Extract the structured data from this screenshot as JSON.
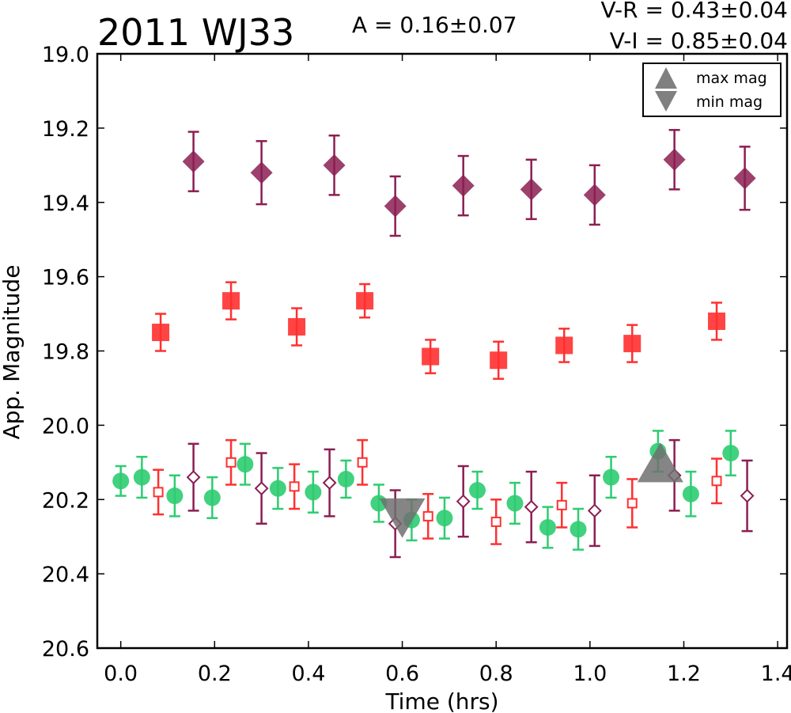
{
  "chart_data": {
    "type": "scatter",
    "title": "2011 WJ33",
    "annotations": {
      "amplitude": "A  = 0.16±0.07",
      "v_r": "V-R = 0.43±0.04",
      "v_i": "V-I  = 0.85±0.04"
    },
    "xlabel": "Time (hrs)",
    "ylabel": "App. Magnitude",
    "xlim": [
      -0.05,
      1.42
    ],
    "ylim": [
      20.6,
      19.0
    ],
    "y_inverted": true,
    "grid": false,
    "x_ticks": [
      "0.0",
      "0.2",
      "0.4",
      "0.6",
      "0.8",
      "1.0",
      "1.2",
      "1.4"
    ],
    "y_ticks": [
      "19.0",
      "19.2",
      "19.4",
      "19.6",
      "19.8",
      "20.0",
      "20.2",
      "20.4",
      "20.6"
    ],
    "legend": {
      "position": "top-right",
      "entries": [
        {
          "label": "max mag",
          "marker": "triangle-up"
        },
        {
          "label": "min mag",
          "marker": "triangle-down"
        }
      ]
    },
    "series": [
      {
        "marker": "diamond-filled",
        "color": "#8b1e52",
        "x": [
          0.155,
          0.3,
          0.455,
          0.585,
          0.73,
          0.875,
          1.01,
          1.18,
          1.33
        ],
        "y": [
          19.29,
          19.32,
          19.3,
          19.41,
          19.355,
          19.365,
          19.38,
          19.285,
          19.335
        ],
        "err": [
          0.08,
          0.085,
          0.08,
          0.08,
          0.08,
          0.08,
          0.08,
          0.08,
          0.085
        ]
      },
      {
        "marker": "square-filled",
        "color": "#ff3030",
        "x": [
          0.085,
          0.235,
          0.375,
          0.52,
          0.66,
          0.805,
          0.945,
          1.09,
          1.27
        ],
        "y": [
          19.75,
          19.665,
          19.735,
          19.665,
          19.815,
          19.825,
          19.785,
          19.78,
          19.72
        ],
        "err": [
          0.05,
          0.05,
          0.05,
          0.045,
          0.045,
          0.05,
          0.045,
          0.05,
          0.05
        ]
      },
      {
        "marker": "circle-filled",
        "color": "#2ecc71",
        "x": [
          0.0,
          0.045,
          0.115,
          0.195,
          0.265,
          0.335,
          0.41,
          0.48,
          0.55,
          0.62,
          0.69,
          0.76,
          0.84,
          0.91,
          0.975,
          1.045,
          1.145,
          1.215,
          1.3
        ],
        "y": [
          20.15,
          20.14,
          20.19,
          20.195,
          20.105,
          20.17,
          20.18,
          20.145,
          20.21,
          20.255,
          20.25,
          20.175,
          20.21,
          20.275,
          20.28,
          20.14,
          20.07,
          20.185,
          20.075
        ],
        "err": [
          0.04,
          0.055,
          0.055,
          0.055,
          0.055,
          0.055,
          0.055,
          0.05,
          0.05,
          0.055,
          0.055,
          0.05,
          0.055,
          0.055,
          0.055,
          0.055,
          0.055,
          0.06,
          0.06
        ]
      },
      {
        "marker": "square-open",
        "color": "#ff3030",
        "x": [
          0.08,
          0.235,
          0.37,
          0.515,
          0.655,
          0.8,
          0.94,
          1.09,
          1.27
        ],
        "y": [
          20.18,
          20.1,
          20.165,
          20.1,
          20.245,
          20.26,
          20.215,
          20.21,
          20.15
        ],
        "err": [
          0.06,
          0.06,
          0.06,
          0.06,
          0.06,
          0.06,
          0.06,
          0.065,
          0.06
        ]
      },
      {
        "marker": "diamond-open",
        "color": "#8b1e52",
        "x": [
          0.155,
          0.3,
          0.445,
          0.585,
          0.73,
          0.875,
          1.01,
          1.18,
          1.335
        ],
        "y": [
          20.14,
          20.17,
          20.155,
          20.265,
          20.205,
          20.22,
          20.23,
          20.135,
          20.19
        ],
        "err": [
          0.09,
          0.095,
          0.09,
          0.09,
          0.095,
          0.095,
          0.095,
          0.095,
          0.095
        ]
      }
    ],
    "extrema_markers": [
      {
        "type": "max",
        "x": 1.15,
        "y": 20.1
      },
      {
        "type": "min",
        "x": 0.6,
        "y": 20.25
      }
    ]
  }
}
